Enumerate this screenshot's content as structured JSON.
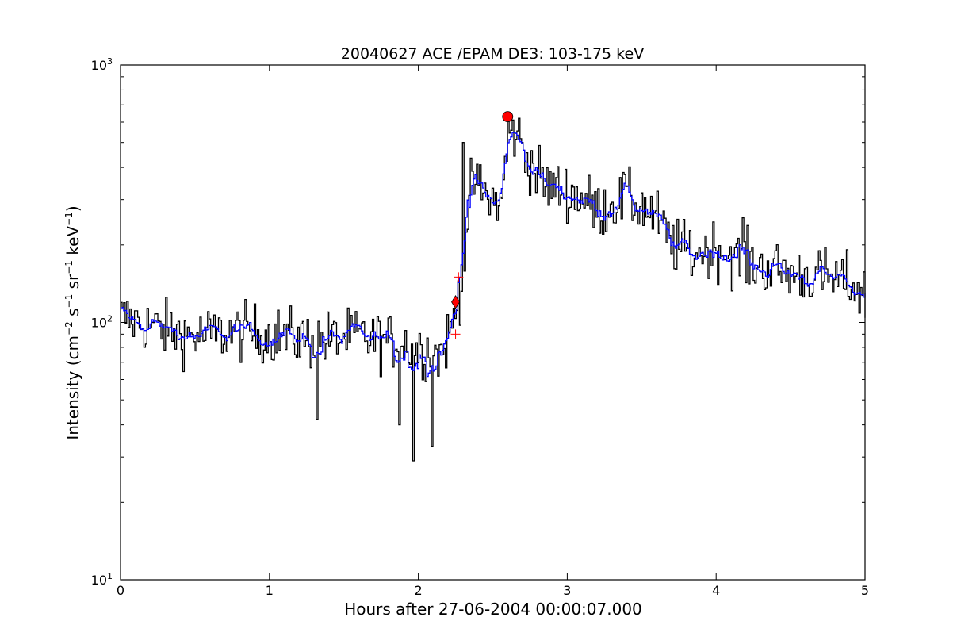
{
  "chart_data": {
    "type": "line",
    "title": "20040627 ACE /EPAM DE3: 103-175 keV",
    "xlabel": "Hours after 27-06-2004 00:00:07.000",
    "ylabel_main": "Intensity (cm",
    "ylabel_sup1": "−2",
    "ylabel_mid1": " s",
    "ylabel_sup2": "−1",
    "ylabel_mid2": " sr",
    "ylabel_sup3": "−1",
    "ylabel_mid3": " keV",
    "ylabel_sup4": "−1",
    "ylabel_end": ")",
    "xlim": [
      0,
      5
    ],
    "ylim": [
      10,
      1000
    ],
    "yscale": "log",
    "grid": false,
    "x_ticks": [
      {
        "value": 0,
        "label": "0"
      },
      {
        "value": 1,
        "label": "1"
      },
      {
        "value": 2,
        "label": "2"
      },
      {
        "value": 3,
        "label": "3"
      },
      {
        "value": 4,
        "label": "4"
      },
      {
        "value": 5,
        "label": "5"
      }
    ],
    "y_ticks": [
      {
        "value": 10,
        "base": "10",
        "exp": "1"
      },
      {
        "value": 100,
        "base": "10",
        "exp": "2"
      },
      {
        "value": 1000,
        "base": "10",
        "exp": "3"
      }
    ],
    "anchors": [
      {
        "x": 0.0,
        "y": 105
      },
      {
        "x": 0.25,
        "y": 95
      },
      {
        "x": 0.5,
        "y": 88
      },
      {
        "x": 0.8,
        "y": 92
      },
      {
        "x": 1.0,
        "y": 90
      },
      {
        "x": 1.3,
        "y": 85
      },
      {
        "x": 1.6,
        "y": 88
      },
      {
        "x": 1.9,
        "y": 82
      },
      {
        "x": 2.15,
        "y": 75
      },
      {
        "x": 2.22,
        "y": 95
      },
      {
        "x": 2.28,
        "y": 140
      },
      {
        "x": 2.32,
        "y": 230
      },
      {
        "x": 2.36,
        "y": 360
      },
      {
        "x": 2.45,
        "y": 310
      },
      {
        "x": 2.55,
        "y": 285
      },
      {
        "x": 2.6,
        "y": 500
      },
      {
        "x": 2.65,
        "y": 560
      },
      {
        "x": 2.72,
        "y": 440
      },
      {
        "x": 2.85,
        "y": 340
      },
      {
        "x": 3.0,
        "y": 320
      },
      {
        "x": 3.1,
        "y": 305
      },
      {
        "x": 3.2,
        "y": 270
      },
      {
        "x": 3.35,
        "y": 300
      },
      {
        "x": 3.5,
        "y": 285
      },
      {
        "x": 3.6,
        "y": 250
      },
      {
        "x": 3.7,
        "y": 200
      },
      {
        "x": 3.85,
        "y": 185
      },
      {
        "x": 4.0,
        "y": 195
      },
      {
        "x": 4.15,
        "y": 175
      },
      {
        "x": 4.3,
        "y": 165
      },
      {
        "x": 4.5,
        "y": 155
      },
      {
        "x": 4.7,
        "y": 150
      },
      {
        "x": 4.9,
        "y": 142
      },
      {
        "x": 5.0,
        "y": 125
      }
    ],
    "n_samples": 480,
    "raw_noise": 0.13,
    "smooth_window": 7,
    "raw_outliers": [
      {
        "x": 1.96,
        "y": 29
      },
      {
        "x": 2.09,
        "y": 33
      },
      {
        "x": 1.32,
        "y": 42
      },
      {
        "x": 1.87,
        "y": 40
      },
      {
        "x": 2.3,
        "y": 500
      },
      {
        "x": 2.6,
        "y": 620
      },
      {
        "x": 3.38,
        "y": 375
      },
      {
        "x": 4.18,
        "y": 255
      }
    ],
    "series": [
      {
        "key": "raw",
        "color": "#000000"
      },
      {
        "key": "smoothed",
        "color": "#0000ff"
      }
    ],
    "markers": [
      {
        "type": "diamond",
        "x": 2.25,
        "y": 120,
        "color": "#ff0000"
      },
      {
        "type": "circle",
        "x": 2.6,
        "y": 630,
        "color": "#ff0000"
      }
    ],
    "crosses": [
      {
        "x": 2.25,
        "y": 90,
        "color": "#ff0000"
      },
      {
        "x": 2.27,
        "y": 150,
        "color": "#ff0000"
      }
    ]
  }
}
